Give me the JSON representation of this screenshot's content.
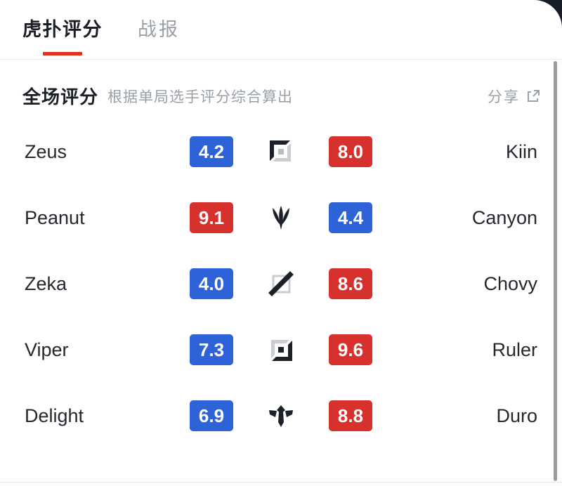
{
  "tabs": [
    {
      "label": "虎扑评分",
      "active": true
    },
    {
      "label": "战报",
      "active": false
    }
  ],
  "section": {
    "title": "全场评分",
    "subtitle": "根据单局选手评分综合算出",
    "share_label": "分享",
    "share_icon": "share-external-icon"
  },
  "colors": {
    "badge_blue": "#2e63d8",
    "badge_red": "#d7312e",
    "tab_accent_red": "#e0301e",
    "dark_text": "#1b1e26",
    "gray_text": "#9aa0a6",
    "corner_background": "#171e2a"
  },
  "rows": [
    {
      "left_player": "Zeus",
      "left_score": "4.2",
      "left_color": "blue",
      "role": "top",
      "role_icon": "top-lane-icon",
      "right_score": "8.0",
      "right_color": "red",
      "right_player": "Kiin"
    },
    {
      "left_player": "Peanut",
      "left_score": "9.1",
      "left_color": "red",
      "role": "jungle",
      "role_icon": "jungle-icon",
      "right_score": "4.4",
      "right_color": "blue",
      "right_player": "Canyon"
    },
    {
      "left_player": "Zeka",
      "left_score": "4.0",
      "left_color": "blue",
      "role": "mid",
      "role_icon": "mid-lane-icon",
      "right_score": "8.6",
      "right_color": "red",
      "right_player": "Chovy"
    },
    {
      "left_player": "Viper",
      "left_score": "7.3",
      "left_color": "blue",
      "role": "bot",
      "role_icon": "bot-lane-icon",
      "right_score": "9.6",
      "right_color": "red",
      "right_player": "Ruler"
    },
    {
      "left_player": "Delight",
      "left_score": "6.9",
      "left_color": "blue",
      "role": "support",
      "role_icon": "support-icon",
      "right_score": "8.8",
      "right_color": "red",
      "right_player": "Duro"
    }
  ]
}
